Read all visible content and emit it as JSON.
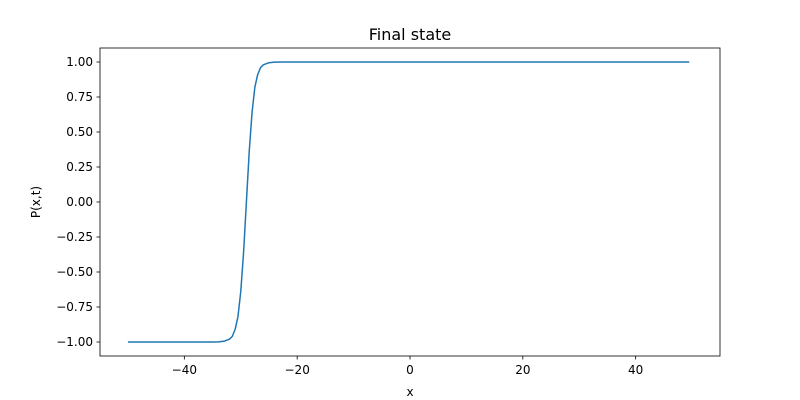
{
  "chart_data": {
    "type": "line",
    "title": "Final state",
    "xlabel": "x",
    "ylabel": "P(x,t)",
    "xlim": [
      -54.95,
      54.95
    ],
    "ylim": [
      -1.1,
      1.1
    ],
    "xticks": [
      -40,
      -20,
      0,
      20,
      40
    ],
    "xtick_labels": [
      "−40",
      "−20",
      "0",
      "20",
      "40"
    ],
    "yticks": [
      -1.0,
      -0.75,
      -0.5,
      -0.25,
      0.0,
      0.25,
      0.5,
      0.75,
      1.0
    ],
    "ytick_labels": [
      "−1.00",
      "−0.75",
      "−0.50",
      "−0.25",
      "0.00",
      "0.25",
      "0.50",
      "0.75",
      "1.00"
    ],
    "grid": false,
    "series": [
      {
        "color": "#1f77b4",
        "x": [
          -50,
          -40,
          -35,
          -34,
          -33,
          -32,
          -31.5,
          -31,
          -30.5,
          -30,
          -29.5,
          -29,
          -28.5,
          -28,
          -27.5,
          -27,
          -26.5,
          -26,
          -25,
          -24,
          -22,
          -20,
          -10,
          0,
          10,
          20,
          30,
          40,
          49.5
        ],
        "y": [
          -1.0,
          -1.0,
          -1.0,
          -0.999,
          -0.995,
          -0.98,
          -0.96,
          -0.91,
          -0.82,
          -0.64,
          -0.36,
          0.0,
          0.36,
          0.64,
          0.82,
          0.91,
          0.96,
          0.98,
          0.995,
          0.999,
          1.0,
          1.0,
          1.0,
          1.0,
          1.0,
          1.0,
          1.0,
          1.0,
          1.0
        ]
      }
    ]
  }
}
